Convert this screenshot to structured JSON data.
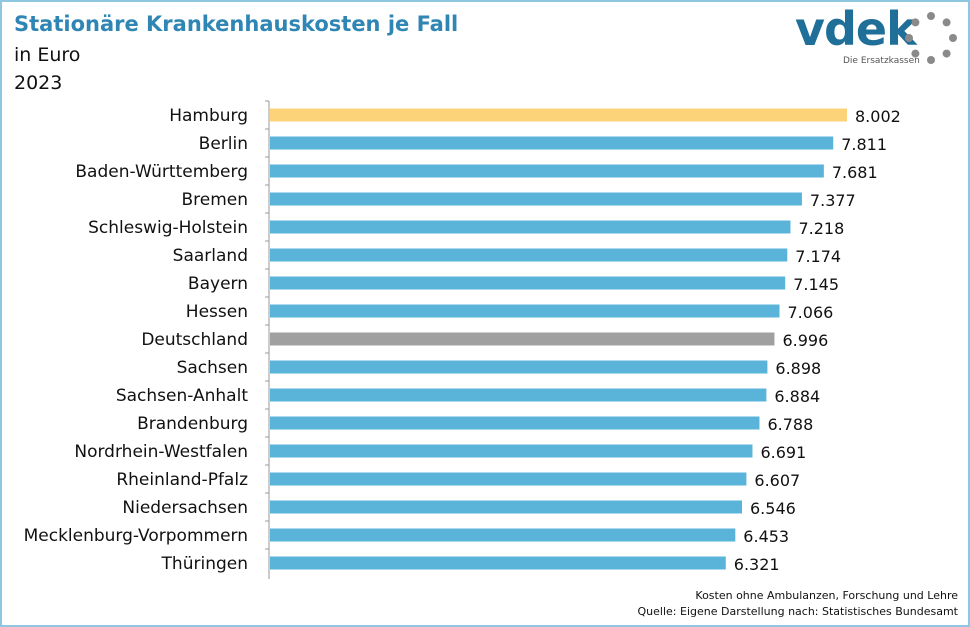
{
  "header": {
    "title": "Stationäre Krankenhauskosten je Fall",
    "subtitle": "in Euro",
    "year": "2023"
  },
  "logo": {
    "text": "vdek",
    "tagline": "Die Ersatzkassen",
    "color": "#1f6f98"
  },
  "footer": {
    "note": "Kosten ohne Ambulanzen, Forschung und Lehre",
    "source": "Quelle: Eigene Darstellung nach: Statistisches Bundesamt"
  },
  "chart_data": {
    "type": "bar",
    "orientation": "horizontal",
    "categories": [
      "Hamburg",
      "Berlin",
      "Baden-Württemberg",
      "Bremen",
      "Schleswig-Holstein",
      "Saarland",
      "Bayern",
      "Hessen",
      "Deutschland",
      "Sachsen",
      "Sachsen-Anhalt",
      "Brandenburg",
      "Nordrhein-Westfalen",
      "Rheinland-Pfalz",
      "Niedersachsen",
      "Mecklenburg-Vorpommern",
      "Thüringen"
    ],
    "values": [
      8002,
      7811,
      7681,
      7377,
      7218,
      7174,
      7145,
      7066,
      6996,
      6898,
      6884,
      6788,
      6691,
      6607,
      6546,
      6453,
      6321
    ],
    "value_labels": [
      "8.002",
      "7.811",
      "7.681",
      "7.377",
      "7.218",
      "7.174",
      "7.145",
      "7.066",
      "6.996",
      "6.898",
      "6.884",
      "6.788",
      "6.691",
      "6.607",
      "6.546",
      "6.453",
      "6.321"
    ],
    "xlim": [
      0,
      8002
    ],
    "grid": false,
    "colors": {
      "default": "#5ab4d9",
      "highlight_top": "#fcd378",
      "highlight_national": "#a0a0a0"
    },
    "highlight": {
      "Hamburg": "highlight_top",
      "Deutschland": "highlight_national"
    }
  }
}
